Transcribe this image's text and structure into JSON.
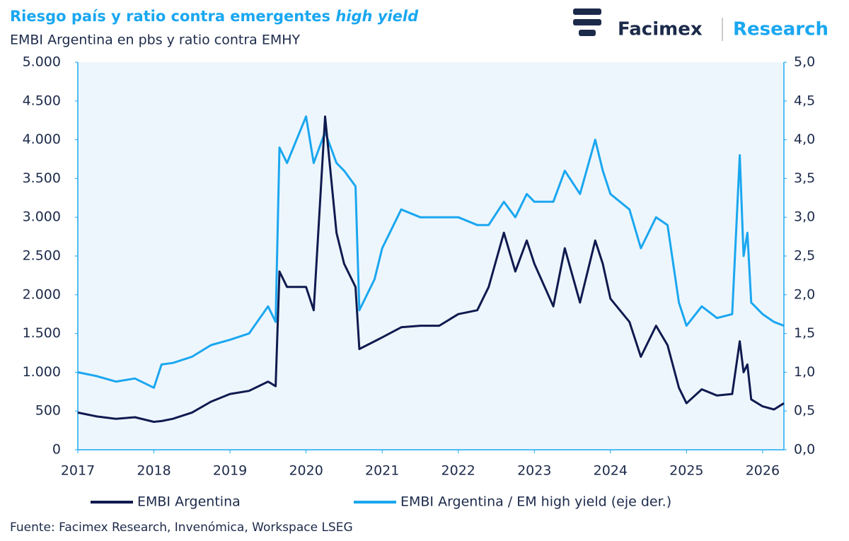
{
  "chart_data": {
    "type": "line",
    "title": "Riesgo país y ratio contra emergentes",
    "title_emphasis": "high yield",
    "subtitle": "EMBI Argentina en pbs y ratio contra EMHY",
    "brand": "Facimex",
    "brand_section": "Research",
    "source": "Fuente: Facimex Research, Invenómica, Workspace LSEG",
    "x": [
      2017.0,
      2017.25,
      2017.5,
      2017.75,
      2018.0,
      2018.1,
      2018.25,
      2018.5,
      2018.75,
      2019.0,
      2019.25,
      2019.5,
      2019.6,
      2019.65,
      2019.75,
      2020.0,
      2020.1,
      2020.25,
      2020.4,
      2020.5,
      2020.65,
      2020.7,
      2020.9,
      2021.0,
      2021.25,
      2021.5,
      2021.75,
      2022.0,
      2022.25,
      2022.4,
      2022.6,
      2022.75,
      2022.9,
      2023.0,
      2023.25,
      2023.4,
      2023.6,
      2023.8,
      2023.9,
      2024.0,
      2024.25,
      2024.4,
      2024.6,
      2024.75,
      2024.9,
      2025.0,
      2025.2,
      2025.4,
      2025.6,
      2025.7,
      2025.75,
      2025.8,
      2025.85,
      2026.0,
      2026.15,
      2026.28
    ],
    "series": [
      {
        "name": "EMBI Argentina",
        "color": "#0f1a4f",
        "axis": "y",
        "values": [
          480,
          430,
          400,
          420,
          360,
          370,
          400,
          480,
          620,
          720,
          760,
          880,
          820,
          2300,
          2100,
          2100,
          1800,
          4300,
          2800,
          2400,
          2100,
          1300,
          1400,
          1450,
          1580,
          1600,
          1600,
          1750,
          1800,
          2100,
          2800,
          2300,
          2700,
          2400,
          1850,
          2600,
          1900,
          2700,
          2400,
          1950,
          1650,
          1200,
          1600,
          1350,
          800,
          600,
          780,
          700,
          720,
          1400,
          1000,
          1100,
          650,
          560,
          520,
          600
        ]
      },
      {
        "name": "EMBI Argentina / EM high yield (eje der.)",
        "color": "#1aa7f0",
        "axis": "y2",
        "values": [
          1.0,
          0.95,
          0.88,
          0.92,
          0.8,
          1.1,
          1.12,
          1.2,
          1.35,
          1.42,
          1.5,
          1.85,
          1.65,
          3.9,
          3.7,
          4.3,
          3.7,
          4.1,
          3.7,
          3.6,
          3.4,
          1.8,
          2.2,
          2.6,
          3.1,
          3.0,
          3.0,
          3.0,
          2.9,
          2.9,
          3.2,
          3.0,
          3.3,
          3.2,
          3.2,
          3.6,
          3.3,
          4.0,
          3.6,
          3.3,
          3.1,
          2.6,
          3.0,
          2.9,
          1.9,
          1.6,
          1.85,
          1.7,
          1.75,
          3.8,
          2.5,
          2.8,
          1.9,
          1.75,
          1.65,
          1.6
        ]
      }
    ],
    "xlim": [
      2017,
      2026.28
    ],
    "xticks": [
      2017,
      2018,
      2019,
      2020,
      2021,
      2022,
      2023,
      2024,
      2025,
      2026
    ],
    "ylim": [
      0,
      5000
    ],
    "yticks": [
      0,
      {
        "value": 500,
        "label": "500"
      },
      {
        "value": 1000,
        "label": "1.000"
      },
      {
        "value": 1500,
        "label": "1.500"
      },
      {
        "value": 2000,
        "label": "2.000"
      },
      {
        "value": 2500,
        "label": "2.500"
      },
      {
        "value": 3000,
        "label": "3.000"
      },
      {
        "value": 3500,
        "label": "3.500"
      },
      {
        "value": 4000,
        "label": "4.000"
      },
      {
        "value": 4500,
        "label": "4.500"
      },
      {
        "value": 5000,
        "label": "5.000"
      }
    ],
    "y2lim": [
      0,
      5
    ],
    "y2ticks": [
      {
        "value": 0,
        "label": "0,0"
      },
      {
        "value": 0.5,
        "label": "0,5"
      },
      {
        "value": 1,
        "label": "1,0"
      },
      {
        "value": 1.5,
        "label": "1,5"
      },
      {
        "value": 2,
        "label": "2,0"
      },
      {
        "value": 2.5,
        "label": "2,5"
      },
      {
        "value": 3,
        "label": "3,0"
      },
      {
        "value": 3.5,
        "label": "3,5"
      },
      {
        "value": 4,
        "label": "4,0"
      },
      {
        "value": 4.5,
        "label": "4,5"
      },
      {
        "value": 5,
        "label": "5,0"
      }
    ]
  }
}
